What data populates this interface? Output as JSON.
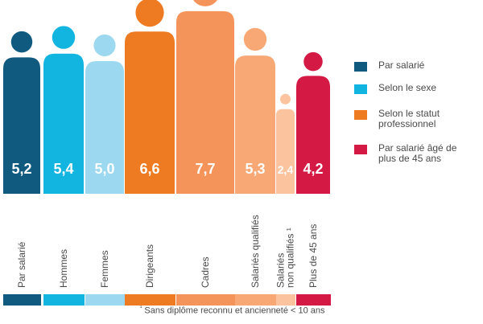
{
  "chart_data": {
    "type": "bar",
    "categories": [
      "Par salarié",
      "Hommes",
      "Femmes",
      "Dirigeants",
      "Cadres",
      "Salariés qualifiés",
      "Salariés non qualifiés ¹",
      "Plus de 45 ans"
    ],
    "values": [
      5.2,
      5.4,
      5.0,
      6.6,
      7.7,
      5.3,
      2.4,
      4.2
    ],
    "value_labels": [
      "5,2",
      "5,4",
      "5,0",
      "6,6",
      "7,7",
      "5,3",
      "2,4",
      "4,2"
    ],
    "groups": [
      "par_salarie",
      "sexe",
      "sexe",
      "statut",
      "statut",
      "statut",
      "statut",
      "age"
    ],
    "bar_colors": [
      "#0f5a7e",
      "#12b4e0",
      "#9cd8ef",
      "#ee7a22",
      "#f5945a",
      "#f7a875",
      "#fcc49e",
      "#d41945"
    ],
    "legend": [
      {
        "label": "Par salarié",
        "color": "#0f5a7e"
      },
      {
        "label": "Selon le sexe",
        "color": "#12b4e0"
      },
      {
        "label": "Selon le statut professionnel",
        "color": "#ee7a22"
      },
      {
        "label": "Par salarié âgé de plus de 45 ans",
        "color": "#d41945"
      }
    ],
    "legend_position": "right",
    "footnote": "Sans diplôme reconnu et ancienneté < 10 ans",
    "footnote_marker": "¹",
    "ylim": [
      0,
      8
    ],
    "grid": false
  }
}
